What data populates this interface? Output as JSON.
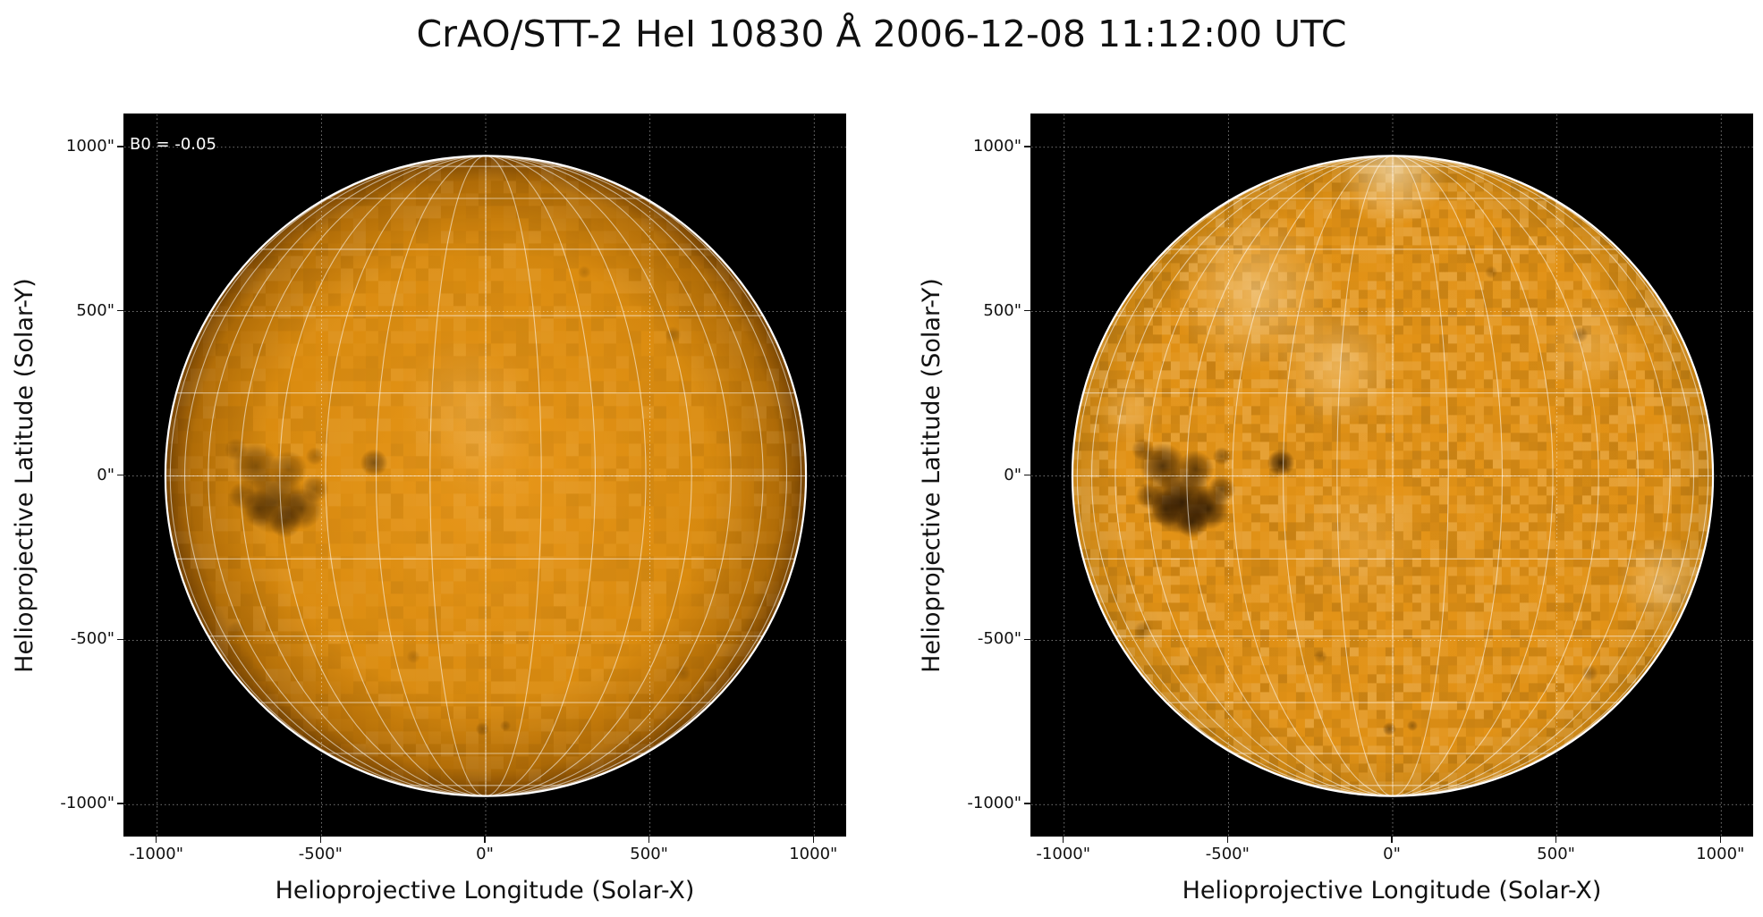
{
  "title": "CrAO/STT-2 HeI 10830 Å 2006-12-08 11:12:00 UTC",
  "colors": {
    "sun_base": "#e39210",
    "sun_dark": "#8a5004",
    "sun_bright": "#f7d9a2",
    "background": "#000000",
    "grid": "#ffffff"
  },
  "panels": [
    {
      "annotation": "B0 = -0.05",
      "xlabel": "Helioprojective Longitude (Solar-X)",
      "ylabel": "Helioprojective Latitude (Solar-Y)",
      "xticks": [
        "-1000\"",
        "-500\"",
        "0\"",
        "500\"",
        "1000\""
      ],
      "yticks": [
        "1000\"",
        "500\"",
        "0\"",
        "-500\"",
        "-1000\""
      ],
      "style": "raw"
    },
    {
      "annotation": "",
      "xlabel": "Helioprojective Longitude (Solar-X)",
      "ylabel": "Helioprojective Latitude (Solar-Y)",
      "xticks": [
        "-1000\"",
        "-500\"",
        "0\"",
        "500\"",
        "1000\""
      ],
      "yticks": [
        "1000\"",
        "500\"",
        "0\"",
        "-500\"",
        "-1000\""
      ],
      "style": "enhanced"
    }
  ],
  "chart_data": [
    {
      "type": "image",
      "xlim": [
        -1100,
        1100
      ],
      "ylim": [
        -1100,
        1100
      ],
      "x_tick_values": [
        -1000,
        -500,
        0,
        500,
        1000
      ],
      "y_tick_values": [
        1000,
        500,
        0,
        -500,
        -1000
      ],
      "solar_radius_arcsec": 975,
      "b0_deg": -0.05,
      "grid": true
    },
    {
      "type": "image",
      "xlim": [
        -1100,
        1100
      ],
      "ylim": [
        -1100,
        1100
      ],
      "x_tick_values": [
        -1000,
        -500,
        0,
        500,
        1000
      ],
      "y_tick_values": [
        1000,
        500,
        0,
        -500,
        -1000
      ],
      "solar_radius_arcsec": 975,
      "grid": true
    }
  ]
}
